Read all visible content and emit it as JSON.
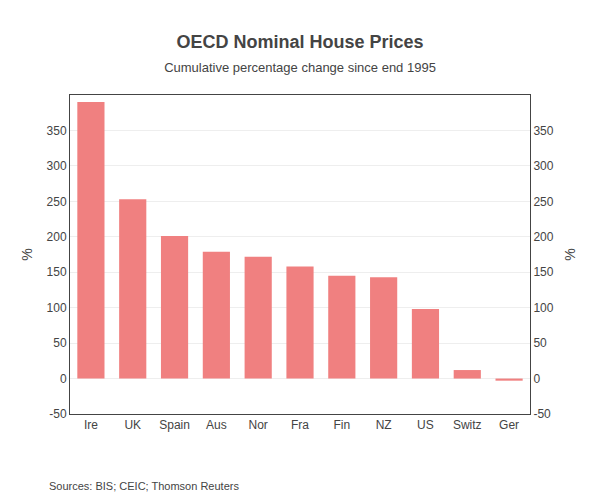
{
  "chart_data": {
    "type": "bar",
    "title": "OECD Nominal House Prices",
    "subtitle": "Cumulative percentage change since end 1995",
    "categories": [
      "Ire",
      "UK",
      "Spain",
      "Aus",
      "Nor",
      "Fra",
      "Fin",
      "NZ",
      "US",
      "Switz",
      "Ger"
    ],
    "values": [
      390,
      253,
      201,
      179,
      172,
      158,
      145,
      143,
      98,
      12,
      -3
    ],
    "color": "#F08080",
    "ylim": [
      -50,
      400
    ],
    "yticks": [
      -50,
      0,
      50,
      100,
      150,
      200,
      250,
      300,
      350
    ],
    "y2lim": [
      -50,
      400
    ],
    "y2ticks": [
      -50,
      0,
      50,
      100,
      150,
      200,
      250,
      300,
      350
    ],
    "ylabel": "%",
    "y2label": "%",
    "source": "Sources: BIS; CEIC; Thomson Reuters",
    "grid": true
  }
}
